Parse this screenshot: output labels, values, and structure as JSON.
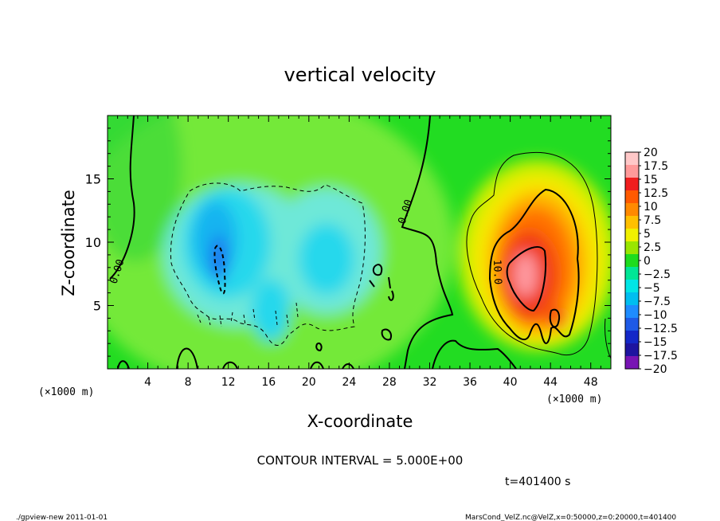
{
  "chart_data": {
    "type": "heatmap",
    "title": "vertical velocity",
    "xlabel": "X-coordinate",
    "ylabel": "Z-coordinate",
    "x_unit_left": "(×1000 m)",
    "x_unit_right": "(×1000 m)",
    "xlim": [
      0,
      50
    ],
    "ylim": [
      0,
      20
    ],
    "x_ticks": [
      "4",
      "8",
      "12",
      "16",
      "20",
      "24",
      "28",
      "32",
      "36",
      "40",
      "44",
      "48"
    ],
    "y_ticks": [
      "5",
      "10",
      "15"
    ],
    "colorbar_levels": [
      "20",
      "17.5",
      "15",
      "12.5",
      "10",
      "7.5",
      "5",
      "2.5",
      "0",
      "−2.5",
      "−5",
      "−7.5",
      "−10",
      "−12.5",
      "−15",
      "−17.5",
      "−20"
    ],
    "colorbar_colors": [
      "#ffc8c8",
      "#ff9a9a",
      "#f01e1e",
      "#ff5a00",
      "#ff8a00",
      "#ffc000",
      "#f0f000",
      "#9ae600",
      "#1edc1e",
      "#00e696",
      "#00e6e6",
      "#00bef0",
      "#1e8cff",
      "#1e5ae6",
      "#1428c8",
      "#1e14a0",
      "#7814b4"
    ],
    "contour_labels": [
      "0.00",
      "0.00",
      "10.0"
    ],
    "features": {
      "updraft_max": 15,
      "updraft_center": [
        41.5,
        8
      ],
      "downdraft_min": -10,
      "downdraft_center": [
        11,
        8.5
      ]
    }
  },
  "annotations": {
    "contour_interval": "CONTOUR INTERVAL = 5.000E+00",
    "time": "t=401400  s",
    "footer_left": "./gpview-new   2011-01-01",
    "footer_right": "MarsCond_VelZ.nc@VelZ,x=0:50000,z=0:20000,t=401400"
  }
}
